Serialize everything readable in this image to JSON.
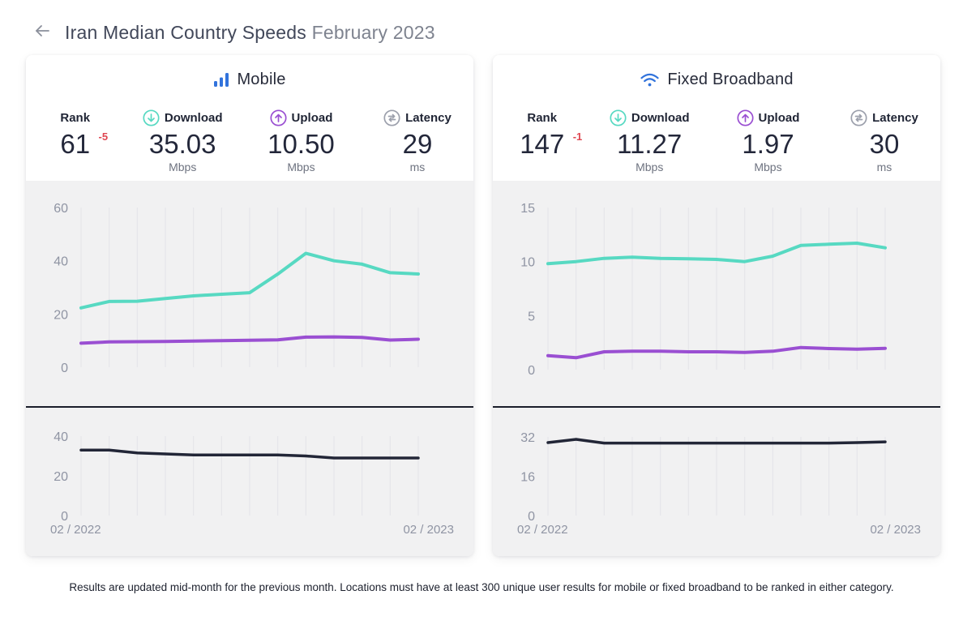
{
  "header": {
    "back_icon": "arrow-left",
    "title": "Iran Median Country Speeds",
    "subtitle": "February 2023"
  },
  "colors": {
    "download": "#57d9c2",
    "upload": "#9a4fd2",
    "latency_line": "#222637",
    "brand_blue": "#3273dc",
    "negative_change": "#df4651",
    "chart_bg": "#f1f1f2",
    "gridline": "#e4e4e8",
    "tick": "#8f94a3"
  },
  "cards": [
    {
      "title": "Mobile",
      "title_icon": "mobile-bars-icon",
      "stats": [
        {
          "label": "Rank",
          "value": "61",
          "change": "-5",
          "unit": ""
        },
        {
          "label": "Download",
          "icon": "download-icon",
          "value": "35.03",
          "unit": "Mbps"
        },
        {
          "label": "Upload",
          "icon": "upload-icon",
          "value": "10.50",
          "unit": "Mbps"
        },
        {
          "label": "Latency",
          "icon": "latency-icon",
          "value": "29",
          "unit": "ms"
        }
      ]
    },
    {
      "title": "Fixed Broadband",
      "title_icon": "wifi-icon",
      "stats": [
        {
          "label": "Rank",
          "value": "147",
          "change": "-1",
          "unit": ""
        },
        {
          "label": "Download",
          "icon": "download-icon",
          "value": "11.27",
          "unit": "Mbps"
        },
        {
          "label": "Upload",
          "icon": "upload-icon",
          "value": "1.97",
          "unit": "Mbps"
        },
        {
          "label": "Latency",
          "icon": "latency-icon",
          "value": "30",
          "unit": "ms"
        }
      ]
    }
  ],
  "chart_data": [
    {
      "id": "mobile-speed",
      "type": "line",
      "title": "Mobile download and upload speed, monthly",
      "x": [
        "02/2022",
        "03/2022",
        "04/2022",
        "05/2022",
        "06/2022",
        "07/2022",
        "08/2022",
        "09/2022",
        "10/2022",
        "11/2022",
        "12/2022",
        "01/2023",
        "02/2023"
      ],
      "yticks": [
        60,
        40,
        20,
        0
      ],
      "ylim": [
        0,
        60
      ],
      "grid": "vertical",
      "series": [
        {
          "name": "Download (Mbps)",
          "color": "#57d9c2",
          "values": [
            22.3,
            24.7,
            24.8,
            25.8,
            26.8,
            27.4,
            28.0,
            35.0,
            42.8,
            40.0,
            38.7,
            35.5,
            35.03
          ]
        },
        {
          "name": "Upload (Mbps)",
          "color": "#9a4fd2",
          "values": [
            9.0,
            9.5,
            9.6,
            9.7,
            9.8,
            10.0,
            10.1,
            10.3,
            11.3,
            11.4,
            11.2,
            10.2,
            10.5
          ]
        }
      ]
    },
    {
      "id": "mobile-latency",
      "type": "line",
      "title": "Mobile latency, monthly",
      "x": [
        "02/2022",
        "03/2022",
        "04/2022",
        "05/2022",
        "06/2022",
        "07/2022",
        "08/2022",
        "09/2022",
        "10/2022",
        "11/2022",
        "12/2022",
        "01/2023",
        "02/2023"
      ],
      "yticks": [
        40,
        20,
        0
      ],
      "ylim": [
        0,
        40
      ],
      "grid": "vertical",
      "xlabels": [
        "02 / 2022",
        "02 / 2023"
      ],
      "series": [
        {
          "name": "Latency (ms)",
          "color": "#222637",
          "width": 3.5,
          "values": [
            33,
            33,
            31.5,
            31,
            30.5,
            30.5,
            30.5,
            30.5,
            30,
            29,
            29,
            29,
            29
          ]
        }
      ]
    },
    {
      "id": "fixed-speed",
      "type": "line",
      "title": "Fixed broadband download and upload speed, monthly",
      "x": [
        "02/2022",
        "03/2022",
        "04/2022",
        "05/2022",
        "06/2022",
        "07/2022",
        "08/2022",
        "09/2022",
        "10/2022",
        "11/2022",
        "12/2022",
        "01/2023",
        "02/2023"
      ],
      "yticks": [
        15,
        10,
        5,
        0
      ],
      "ylim": [
        0,
        15
      ],
      "grid": "vertical",
      "series": [
        {
          "name": "Download (Mbps)",
          "color": "#57d9c2",
          "values": [
            9.8,
            10.0,
            10.3,
            10.4,
            10.3,
            10.25,
            10.2,
            10.0,
            10.5,
            11.5,
            11.6,
            11.7,
            11.27
          ]
        },
        {
          "name": "Upload (Mbps)",
          "color": "#9a4fd2",
          "values": [
            1.3,
            1.1,
            1.65,
            1.7,
            1.7,
            1.65,
            1.65,
            1.6,
            1.7,
            2.05,
            1.95,
            1.9,
            1.97
          ]
        }
      ]
    },
    {
      "id": "fixed-latency",
      "type": "line",
      "title": "Fixed broadband latency, monthly",
      "x": [
        "02/2022",
        "03/2022",
        "04/2022",
        "05/2022",
        "06/2022",
        "07/2022",
        "08/2022",
        "09/2022",
        "10/2022",
        "11/2022",
        "12/2022",
        "01/2023",
        "02/2023"
      ],
      "yticks": [
        32,
        16,
        0
      ],
      "ylim": [
        0,
        32
      ],
      "grid": "vertical",
      "xlabels": [
        "02 / 2022",
        "02 / 2023"
      ],
      "series": [
        {
          "name": "Latency (ms)",
          "color": "#222637",
          "width": 3.5,
          "values": [
            29.7,
            31,
            29.5,
            29.5,
            29.5,
            29.5,
            29.5,
            29.5,
            29.5,
            29.5,
            29.5,
            29.7,
            30
          ]
        }
      ]
    }
  ],
  "footer": {
    "text": "Results are updated mid-month for the previous month. Locations must have at least 300 unique user results for mobile or fixed broadband to be ranked in either category."
  }
}
